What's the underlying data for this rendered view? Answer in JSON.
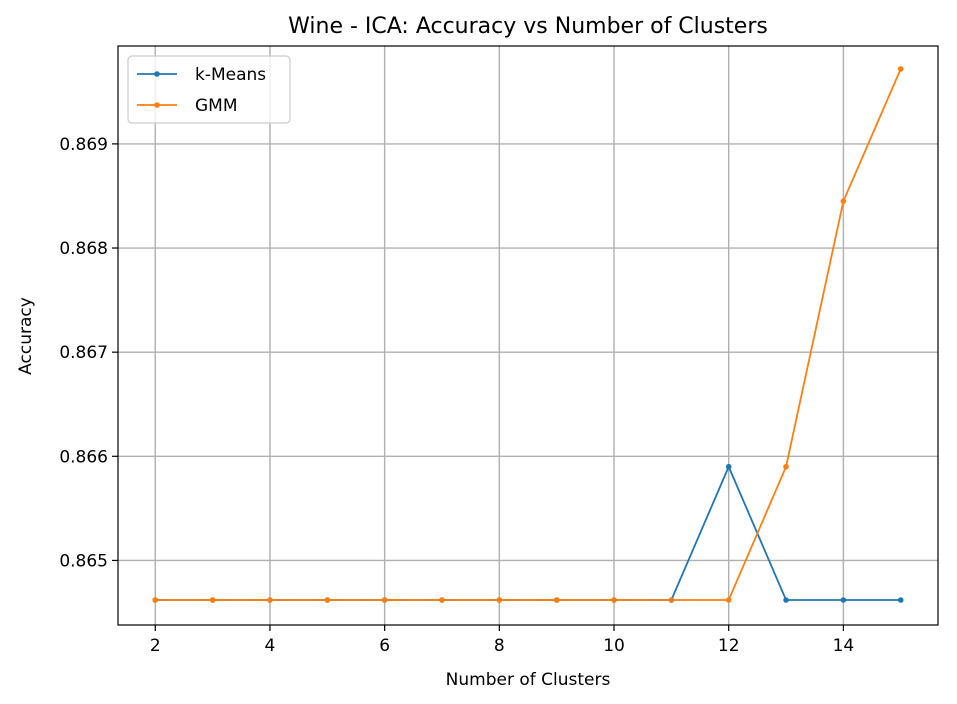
{
  "chart_data": {
    "type": "line",
    "title": "Wine - ICA: Accuracy vs Number of Clusters",
    "xlabel": "Number of Clusters",
    "ylabel": "Accuracy",
    "x": [
      2,
      3,
      4,
      5,
      6,
      7,
      8,
      9,
      10,
      11,
      12,
      13,
      14,
      15
    ],
    "xlim": [
      1.35,
      15.65
    ],
    "ylim": [
      0.86438,
      0.86994
    ],
    "xticks": [
      2,
      4,
      6,
      8,
      10,
      12,
      14
    ],
    "xtick_labels": [
      "2",
      "4",
      "6",
      "8",
      "10",
      "12",
      "14"
    ],
    "yticks": [
      0.865,
      0.866,
      0.867,
      0.868,
      0.869
    ],
    "ytick_labels": [
      "0.865",
      "0.866",
      "0.867",
      "0.868",
      "0.869"
    ],
    "grid": true,
    "legend": "top-left",
    "series": [
      {
        "name": "k-Means",
        "color": "#1f77b4",
        "values": [
          0.86462,
          0.86462,
          0.86462,
          0.86462,
          0.86462,
          0.86462,
          0.86462,
          0.86462,
          0.86462,
          0.86462,
          0.8659,
          0.86462,
          0.86462,
          0.86462
        ]
      },
      {
        "name": "GMM",
        "color": "#ff7f0e",
        "values": [
          0.86462,
          0.86462,
          0.86462,
          0.86462,
          0.86462,
          0.86462,
          0.86462,
          0.86462,
          0.86462,
          0.86462,
          0.86462,
          0.8659,
          0.86845,
          0.86972
        ]
      }
    ]
  }
}
